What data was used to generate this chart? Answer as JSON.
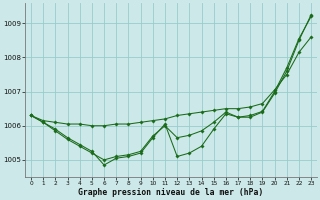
{
  "background_color": "#cce8e8",
  "grid_color": "#99cccc",
  "line_color": "#1a6b1a",
  "xlabel": "Graphe pression niveau de la mer (hPa)",
  "ylim": [
    1004.5,
    1009.6
  ],
  "xlim": [
    -0.5,
    23.5
  ],
  "yticks": [
    1005,
    1006,
    1007,
    1008,
    1009
  ],
  "xticks": [
    0,
    1,
    2,
    3,
    4,
    5,
    6,
    7,
    8,
    9,
    10,
    11,
    12,
    13,
    14,
    15,
    16,
    17,
    18,
    19,
    20,
    21,
    22,
    23
  ],
  "line1_y": [
    1006.3,
    1006.15,
    1006.1,
    1006.05,
    1006.05,
    1006.0,
    1006.0,
    1006.05,
    1006.05,
    1006.1,
    1006.15,
    1006.2,
    1006.3,
    1006.35,
    1006.4,
    1006.45,
    1006.5,
    1006.5,
    1006.55,
    1006.65,
    1007.05,
    1007.5,
    1008.15,
    1008.6
  ],
  "line2_y": [
    1006.3,
    1006.1,
    1005.9,
    1005.65,
    1005.45,
    1005.25,
    1004.85,
    1005.05,
    1005.1,
    1005.2,
    1005.65,
    1006.05,
    1005.1,
    1005.2,
    1005.4,
    1005.9,
    1006.35,
    1006.25,
    1006.25,
    1006.4,
    1006.95,
    1007.6,
    1008.5,
    1009.25
  ],
  "line3_y": [
    1006.3,
    1006.1,
    1005.85,
    1005.6,
    1005.4,
    1005.2,
    1005.0,
    1005.1,
    1005.15,
    1005.25,
    1005.7,
    1006.0,
    1005.65,
    1005.72,
    1005.85,
    1006.1,
    1006.4,
    1006.25,
    1006.3,
    1006.42,
    1007.0,
    1007.7,
    1008.55,
    1009.2
  ]
}
